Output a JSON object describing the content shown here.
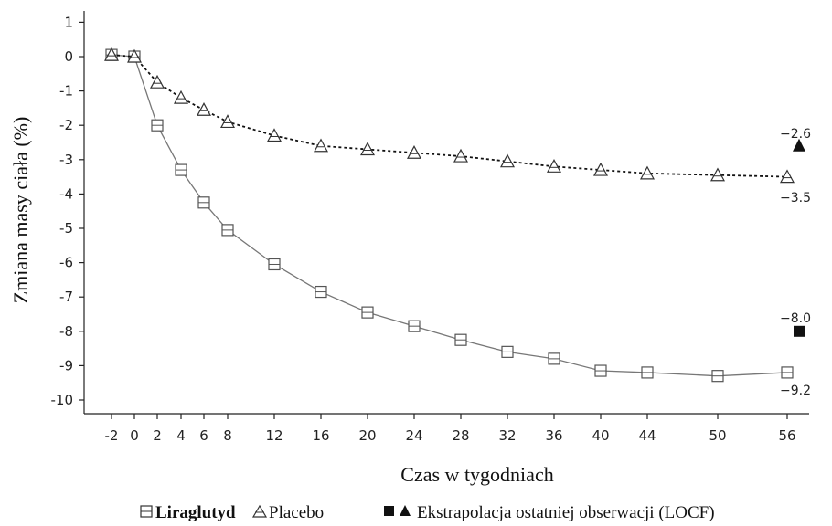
{
  "chart_data": {
    "type": "line",
    "title": "",
    "xlabel": "Czas w tygodniach",
    "ylabel": "Zmiana masy ciała (%)",
    "x_ticks": [
      -2,
      0,
      2,
      4,
      6,
      8,
      12,
      16,
      20,
      24,
      28,
      32,
      36,
      40,
      44,
      50,
      56
    ],
    "y_ticks": [
      1,
      0,
      -1,
      -2,
      -3,
      -4,
      -5,
      -6,
      -7,
      -8,
      -9,
      -10
    ],
    "ylim": [
      -10.3,
      1.2
    ],
    "grid": false,
    "series": [
      {
        "name": "Liraglutyd",
        "marker": "square",
        "line_style": "solid",
        "values": [
          0.05,
          0.0,
          -2.0,
          -3.3,
          -4.25,
          -5.05,
          -6.05,
          -6.85,
          -7.45,
          -7.85,
          -8.25,
          -8.6,
          -8.8,
          -9.15,
          -9.2,
          -9.3,
          -9.2
        ]
      },
      {
        "name": "Placebo",
        "marker": "triangle",
        "line_style": "dashed",
        "values": [
          0.05,
          0.0,
          -0.75,
          -1.2,
          -1.55,
          -1.9,
          -2.3,
          -2.6,
          -2.7,
          -2.8,
          -2.9,
          -3.05,
          -3.2,
          -3.3,
          -3.4,
          -3.45,
          -3.5
        ]
      }
    ],
    "locf": {
      "liraglutide": -8.0,
      "placebo": -2.6
    },
    "annotations": {
      "placebo_locf": "−2.6",
      "placebo_end": "−3.5",
      "lira_locf": "−8.0",
      "lira_end": "−9.2"
    },
    "legend": {
      "position": "bottom",
      "lira_label": "Liraglutyd",
      "placebo_label": "Placebo",
      "locf_label": "Ekstrapolacja ostatniej obserwacji (LOCF)"
    }
  }
}
